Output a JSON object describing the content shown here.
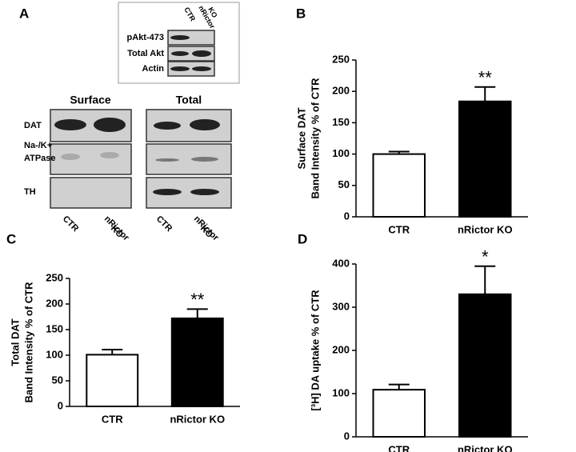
{
  "blot": {
    "panel": "A",
    "inset_lanes": [
      [
        "CTR"
      ],
      [
        "nRictor",
        "KO"
      ]
    ],
    "inset_rows": [
      "pAkt-473",
      "Total Akt",
      "Actin"
    ],
    "groups": [
      "Surface",
      "Total"
    ],
    "rows": [
      [
        "DAT"
      ],
      [
        "Na-/K+",
        "ATPase"
      ],
      [
        "TH"
      ]
    ],
    "lanes": [
      [
        "CTR"
      ],
      [
        "nRictor",
        "KO"
      ]
    ]
  },
  "chart_data": [
    {
      "type": "bar",
      "panel": "B",
      "ylabel": [
        "Surface DAT",
        "Band Intensity % of CTR"
      ],
      "categories": [
        "CTR",
        "nRictor KO"
      ],
      "values": [
        100,
        184
      ],
      "errors": [
        4,
        23
      ],
      "colors": [
        "#ffffff",
        "#000000"
      ],
      "significance": [
        null,
        "**"
      ],
      "ylim": [
        0,
        250
      ],
      "yticks": [
        0,
        50,
        100,
        150,
        200,
        250
      ]
    },
    {
      "type": "bar",
      "panel": "C",
      "ylabel": [
        "Total DAT",
        "Band Intensity % of CTR"
      ],
      "categories": [
        "CTR",
        "nRictor KO"
      ],
      "values": [
        101,
        172
      ],
      "errors": [
        10,
        18
      ],
      "colors": [
        "#ffffff",
        "#000000"
      ],
      "significance": [
        null,
        "**"
      ],
      "ylim": [
        0,
        250
      ],
      "yticks": [
        0,
        50,
        100,
        150,
        200,
        250
      ]
    },
    {
      "type": "bar",
      "panel": "D",
      "ylabel": [
        "[³H] DA uptake % of CTR"
      ],
      "categories": [
        "CTR",
        "nRictor KO"
      ],
      "values": [
        109,
        330
      ],
      "errors": [
        12,
        65
      ],
      "colors": [
        "#ffffff",
        "#000000"
      ],
      "significance": [
        null,
        "*"
      ],
      "ylim": [
        0,
        400
      ],
      "yticks": [
        0,
        100,
        200,
        300,
        400
      ]
    }
  ]
}
